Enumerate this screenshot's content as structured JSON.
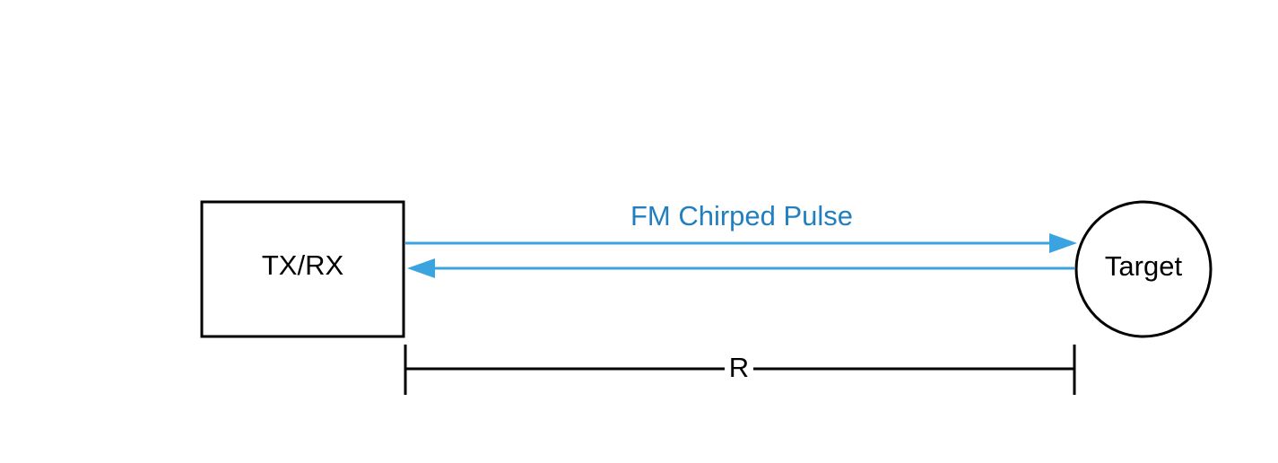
{
  "diagram": {
    "transceiver": {
      "label": "TX/RX"
    },
    "target": {
      "label": "Target"
    },
    "signal": {
      "label": "FM Chirped Pulse"
    },
    "range": {
      "label": "R"
    }
  },
  "colors": {
    "signal": "#3AA3E0",
    "signal_text": "#1F7FC1",
    "stroke": "#000000",
    "background": "#FFFFFF"
  }
}
